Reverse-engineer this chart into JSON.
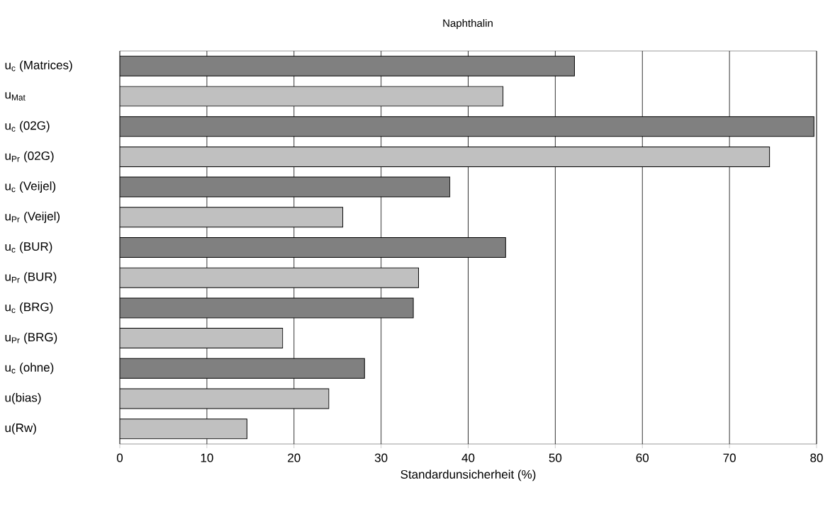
{
  "chart_data": {
    "type": "bar",
    "orientation": "horizontal",
    "title": "Naphthalin",
    "xlabel": "Standardunsicherheit (%)",
    "categories": [
      "u$_{c}$ (Matrices)",
      "u$_{Mat}$",
      "u$_{c}$ (02G)",
      "u$_{Pr}$ (02G)",
      "u$_{c}$ (Veijel)",
      "u$_{Pr}$ (Veijel)",
      "u$_{c}$ (BUR)",
      "u$_{Pr}$ (BUR)",
      "u$_{c}$ (BRG)",
      "u$_{Pr}$ (BRG)",
      "u$_{c}$ (ohne)",
      "u(bias)",
      "u(Rw)"
    ],
    "values": [
      52.2,
      44.0,
      79.7,
      74.6,
      37.9,
      25.6,
      44.3,
      34.3,
      33.7,
      18.7,
      28.1,
      24.0,
      14.6
    ],
    "colors": [
      "#808080",
      "#c0c0c0",
      "#808080",
      "#c0c0c0",
      "#808080",
      "#c0c0c0",
      "#808080",
      "#c0c0c0",
      "#808080",
      "#c0c0c0",
      "#808080",
      "#c0c0c0",
      "#c0c0c0"
    ],
    "xlim": [
      0,
      80
    ],
    "xticks": [
      0,
      10,
      20,
      30,
      40,
      50,
      60,
      70,
      80
    ],
    "grid": "x"
  }
}
